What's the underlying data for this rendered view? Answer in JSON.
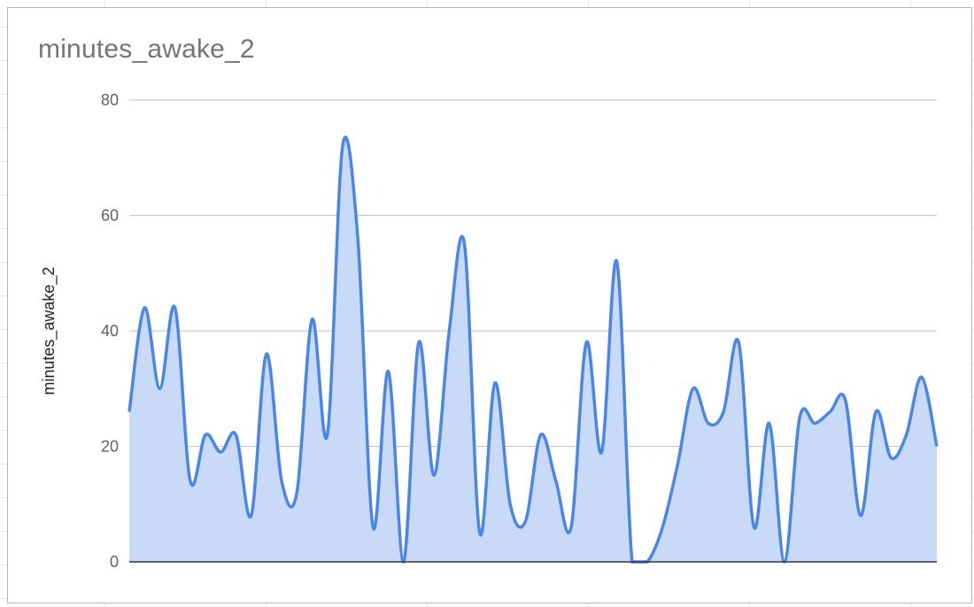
{
  "chart_data": {
    "type": "area",
    "title": "minutes_awake_2",
    "xlabel": "",
    "ylabel": "minutes_awake_2",
    "ylim": [
      0,
      80
    ],
    "yticks": [
      "0",
      "20",
      "40",
      "60",
      "80"
    ],
    "grid": true,
    "legend": "none",
    "series": [
      {
        "values": [
          26,
          44,
          30,
          44,
          14,
          22,
          19,
          22,
          8,
          36,
          14,
          12,
          42,
          22,
          72,
          56,
          6,
          33,
          0,
          38,
          15,
          40,
          55,
          5,
          31,
          10,
          7,
          22,
          14,
          6,
          38,
          19,
          52,
          0,
          0,
          6,
          17,
          30,
          24,
          26,
          38,
          6,
          24,
          0,
          25,
          24,
          26,
          28,
          8,
          26,
          18,
          22,
          32,
          20
        ]
      }
    ],
    "colors": {
      "line": "#4a86e8",
      "fill": "#c9daf8",
      "grid": "#cccccc",
      "baseline": "#333333"
    }
  }
}
